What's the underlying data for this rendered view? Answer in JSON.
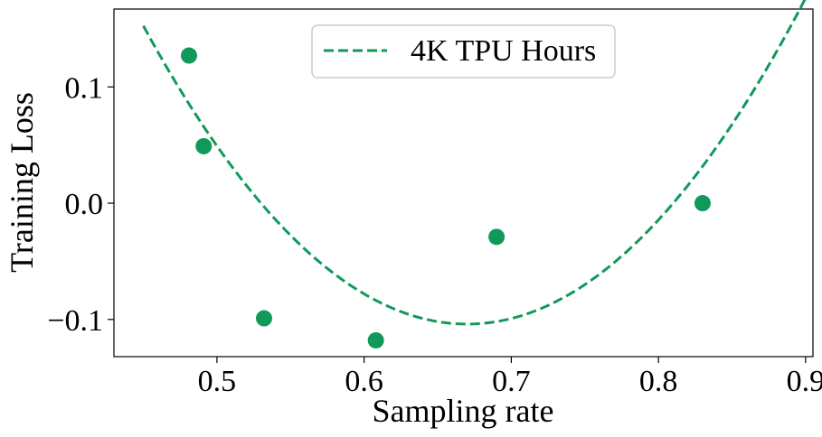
{
  "chart_data": {
    "type": "scatter",
    "xlabel": "Sampling rate",
    "ylabel": "Training Loss",
    "xlim": [
      0.43,
      0.905
    ],
    "ylim": [
      -0.132,
      0.167
    ],
    "xticks": [
      0.5,
      0.6,
      0.7,
      0.8,
      0.9
    ],
    "xtick_labels": [
      "0.5",
      "0.6",
      "0.7",
      "0.8",
      "0.9"
    ],
    "yticks": [
      -0.1,
      0.0,
      0.1
    ],
    "ytick_labels": [
      "−0.1",
      "0.0",
      "0.1"
    ],
    "grid": false,
    "legend_position": "top-center",
    "color": "#11995a",
    "points": [
      {
        "x": 0.481,
        "y": 0.127
      },
      {
        "x": 0.491,
        "y": 0.049
      },
      {
        "x": 0.532,
        "y": -0.099
      },
      {
        "x": 0.608,
        "y": -0.118
      },
      {
        "x": 0.69,
        "y": -0.029
      },
      {
        "x": 0.83,
        "y": 0.0
      }
    ],
    "series": [
      {
        "name": "4K TPU Hours",
        "style": "dashed",
        "curve": "quadratic",
        "x_range": [
          0.45,
          0.9
        ],
        "vertex": {
          "x": 0.67,
          "y": -0.104
        },
        "coefficient": 5.3
      }
    ]
  }
}
